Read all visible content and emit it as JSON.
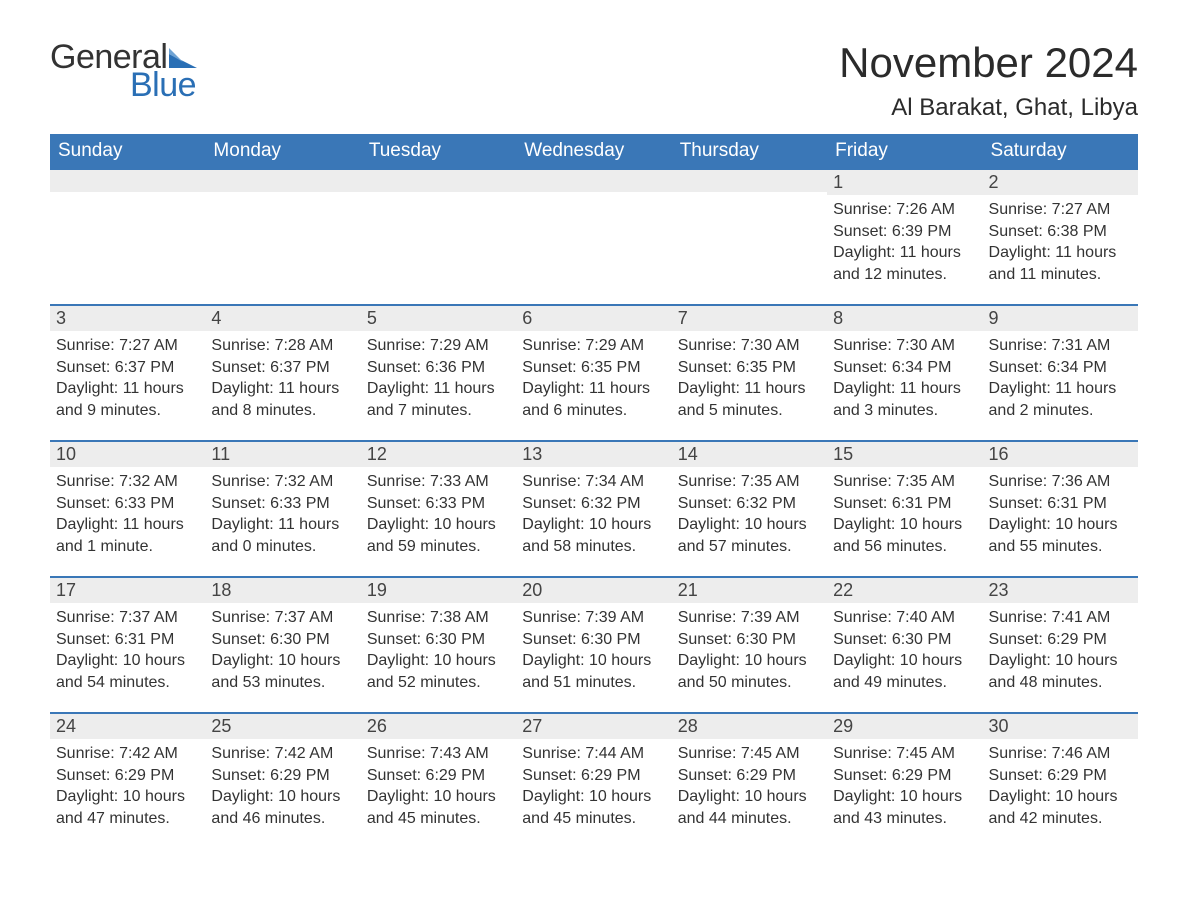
{
  "brand": {
    "word1": "General",
    "word2": "Blue",
    "color_text": "#333333",
    "color_accent": "#2a6fb5"
  },
  "title": {
    "month_year": "November 2024",
    "location": "Al Barakat, Ghat, Libya"
  },
  "colors": {
    "header_bg": "#3a77b7",
    "header_text": "#ffffff",
    "day_strip_bg": "#ededed",
    "day_border": "#3a77b7",
    "body_text": "#333333",
    "page_bg": "#ffffff"
  },
  "typography": {
    "month_title_fontsize": 42,
    "location_fontsize": 24,
    "weekday_fontsize": 19,
    "daynum_fontsize": 18,
    "content_fontsize": 16
  },
  "weekdays": [
    "Sunday",
    "Monday",
    "Tuesday",
    "Wednesday",
    "Thursday",
    "Friday",
    "Saturday"
  ],
  "weeks": [
    [
      null,
      null,
      null,
      null,
      null,
      {
        "n": "1",
        "sunrise": "Sunrise: 7:26 AM",
        "sunset": "Sunset: 6:39 PM",
        "daylight": "Daylight: 11 hours and 12 minutes."
      },
      {
        "n": "2",
        "sunrise": "Sunrise: 7:27 AM",
        "sunset": "Sunset: 6:38 PM",
        "daylight": "Daylight: 11 hours and 11 minutes."
      }
    ],
    [
      {
        "n": "3",
        "sunrise": "Sunrise: 7:27 AM",
        "sunset": "Sunset: 6:37 PM",
        "daylight": "Daylight: 11 hours and 9 minutes."
      },
      {
        "n": "4",
        "sunrise": "Sunrise: 7:28 AM",
        "sunset": "Sunset: 6:37 PM",
        "daylight": "Daylight: 11 hours and 8 minutes."
      },
      {
        "n": "5",
        "sunrise": "Sunrise: 7:29 AM",
        "sunset": "Sunset: 6:36 PM",
        "daylight": "Daylight: 11 hours and 7 minutes."
      },
      {
        "n": "6",
        "sunrise": "Sunrise: 7:29 AM",
        "sunset": "Sunset: 6:35 PM",
        "daylight": "Daylight: 11 hours and 6 minutes."
      },
      {
        "n": "7",
        "sunrise": "Sunrise: 7:30 AM",
        "sunset": "Sunset: 6:35 PM",
        "daylight": "Daylight: 11 hours and 5 minutes."
      },
      {
        "n": "8",
        "sunrise": "Sunrise: 7:30 AM",
        "sunset": "Sunset: 6:34 PM",
        "daylight": "Daylight: 11 hours and 3 minutes."
      },
      {
        "n": "9",
        "sunrise": "Sunrise: 7:31 AM",
        "sunset": "Sunset: 6:34 PM",
        "daylight": "Daylight: 11 hours and 2 minutes."
      }
    ],
    [
      {
        "n": "10",
        "sunrise": "Sunrise: 7:32 AM",
        "sunset": "Sunset: 6:33 PM",
        "daylight": "Daylight: 11 hours and 1 minute."
      },
      {
        "n": "11",
        "sunrise": "Sunrise: 7:32 AM",
        "sunset": "Sunset: 6:33 PM",
        "daylight": "Daylight: 11 hours and 0 minutes."
      },
      {
        "n": "12",
        "sunrise": "Sunrise: 7:33 AM",
        "sunset": "Sunset: 6:33 PM",
        "daylight": "Daylight: 10 hours and 59 minutes."
      },
      {
        "n": "13",
        "sunrise": "Sunrise: 7:34 AM",
        "sunset": "Sunset: 6:32 PM",
        "daylight": "Daylight: 10 hours and 58 minutes."
      },
      {
        "n": "14",
        "sunrise": "Sunrise: 7:35 AM",
        "sunset": "Sunset: 6:32 PM",
        "daylight": "Daylight: 10 hours and 57 minutes."
      },
      {
        "n": "15",
        "sunrise": "Sunrise: 7:35 AM",
        "sunset": "Sunset: 6:31 PM",
        "daylight": "Daylight: 10 hours and 56 minutes."
      },
      {
        "n": "16",
        "sunrise": "Sunrise: 7:36 AM",
        "sunset": "Sunset: 6:31 PM",
        "daylight": "Daylight: 10 hours and 55 minutes."
      }
    ],
    [
      {
        "n": "17",
        "sunrise": "Sunrise: 7:37 AM",
        "sunset": "Sunset: 6:31 PM",
        "daylight": "Daylight: 10 hours and 54 minutes."
      },
      {
        "n": "18",
        "sunrise": "Sunrise: 7:37 AM",
        "sunset": "Sunset: 6:30 PM",
        "daylight": "Daylight: 10 hours and 53 minutes."
      },
      {
        "n": "19",
        "sunrise": "Sunrise: 7:38 AM",
        "sunset": "Sunset: 6:30 PM",
        "daylight": "Daylight: 10 hours and 52 minutes."
      },
      {
        "n": "20",
        "sunrise": "Sunrise: 7:39 AM",
        "sunset": "Sunset: 6:30 PM",
        "daylight": "Daylight: 10 hours and 51 minutes."
      },
      {
        "n": "21",
        "sunrise": "Sunrise: 7:39 AM",
        "sunset": "Sunset: 6:30 PM",
        "daylight": "Daylight: 10 hours and 50 minutes."
      },
      {
        "n": "22",
        "sunrise": "Sunrise: 7:40 AM",
        "sunset": "Sunset: 6:30 PM",
        "daylight": "Daylight: 10 hours and 49 minutes."
      },
      {
        "n": "23",
        "sunrise": "Sunrise: 7:41 AM",
        "sunset": "Sunset: 6:29 PM",
        "daylight": "Daylight: 10 hours and 48 minutes."
      }
    ],
    [
      {
        "n": "24",
        "sunrise": "Sunrise: 7:42 AM",
        "sunset": "Sunset: 6:29 PM",
        "daylight": "Daylight: 10 hours and 47 minutes."
      },
      {
        "n": "25",
        "sunrise": "Sunrise: 7:42 AM",
        "sunset": "Sunset: 6:29 PM",
        "daylight": "Daylight: 10 hours and 46 minutes."
      },
      {
        "n": "26",
        "sunrise": "Sunrise: 7:43 AM",
        "sunset": "Sunset: 6:29 PM",
        "daylight": "Daylight: 10 hours and 45 minutes."
      },
      {
        "n": "27",
        "sunrise": "Sunrise: 7:44 AM",
        "sunset": "Sunset: 6:29 PM",
        "daylight": "Daylight: 10 hours and 45 minutes."
      },
      {
        "n": "28",
        "sunrise": "Sunrise: 7:45 AM",
        "sunset": "Sunset: 6:29 PM",
        "daylight": "Daylight: 10 hours and 44 minutes."
      },
      {
        "n": "29",
        "sunrise": "Sunrise: 7:45 AM",
        "sunset": "Sunset: 6:29 PM",
        "daylight": "Daylight: 10 hours and 43 minutes."
      },
      {
        "n": "30",
        "sunrise": "Sunrise: 7:46 AM",
        "sunset": "Sunset: 6:29 PM",
        "daylight": "Daylight: 10 hours and 42 minutes."
      }
    ]
  ]
}
